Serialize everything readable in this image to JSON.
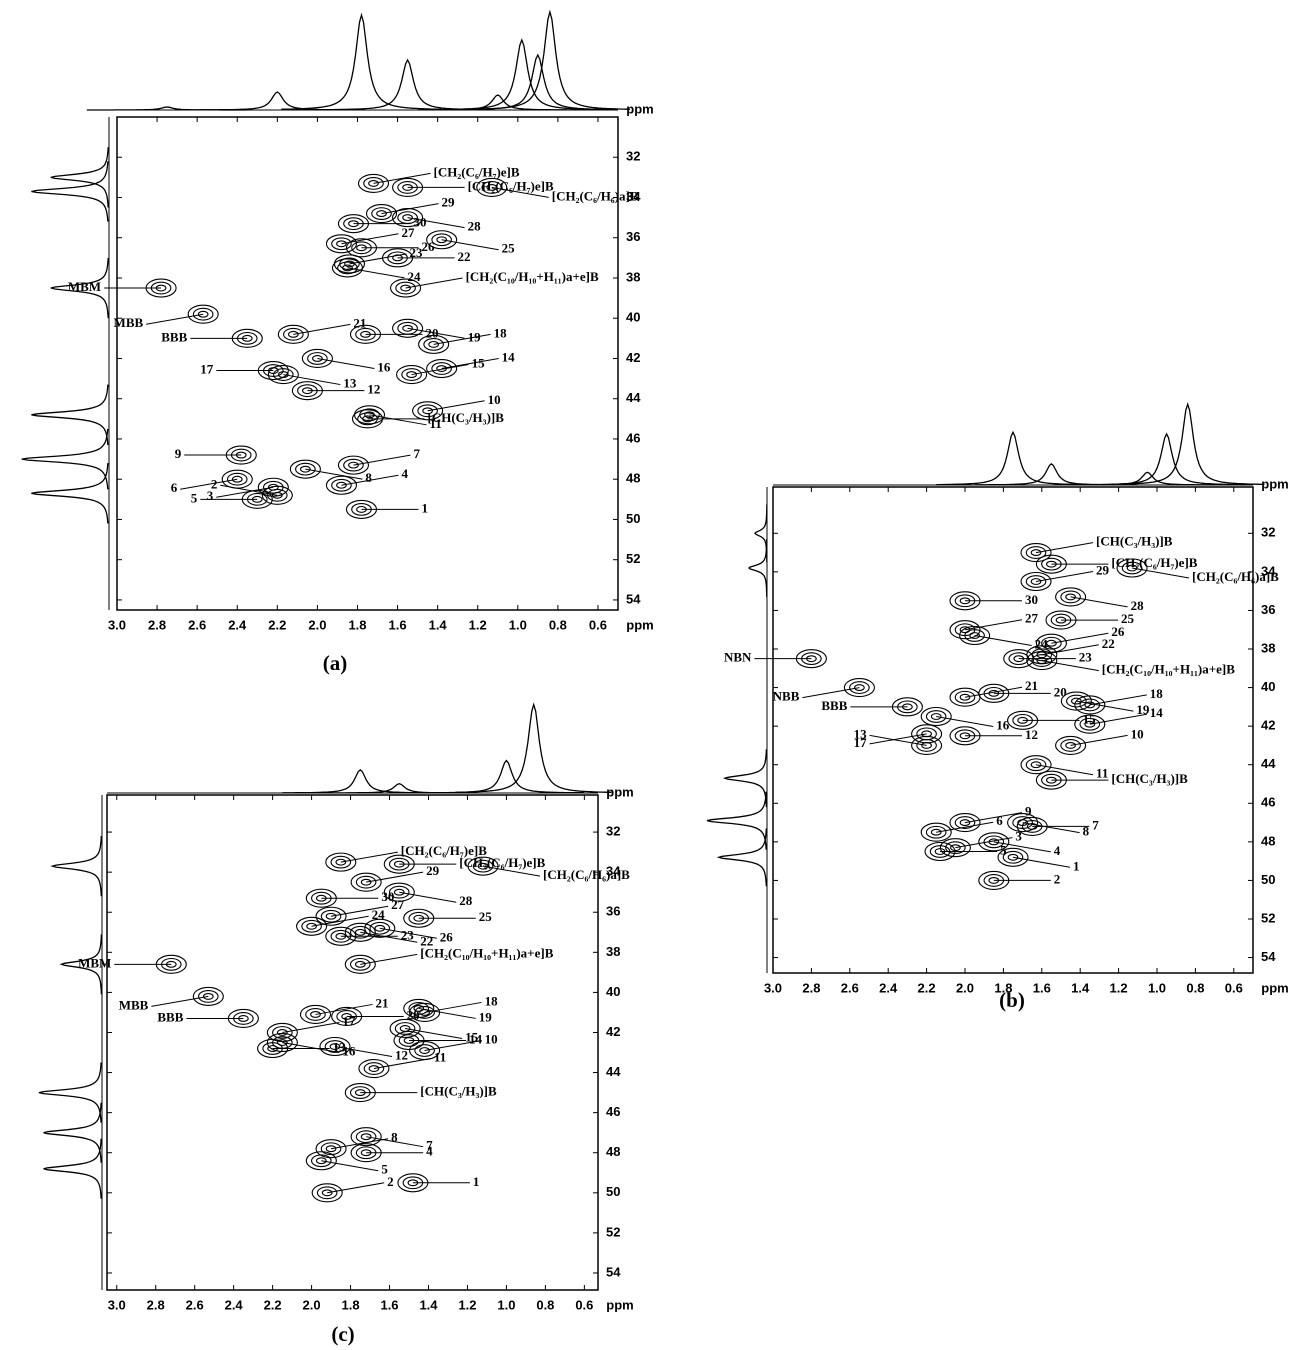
{
  "chart_data": [
    {
      "type": "contour",
      "caption": "(a)",
      "x_label": "ppm",
      "xlim": [
        3.0,
        0.5
      ],
      "ylim": [
        30,
        54.5
      ],
      "xticks": [
        {
          "value": 3,
          "label": "3.0"
        },
        2.8,
        2.6,
        2.4,
        2.2,
        {
          "value": 2,
          "label": "2.0"
        },
        1.8,
        1.6,
        1.4,
        1.2,
        {
          "value": 1,
          "label": "1.0"
        },
        0.8,
        0.6
      ],
      "yticks": [
        32,
        34,
        36,
        38,
        40,
        42,
        44,
        46,
        48,
        50,
        52,
        54
      ],
      "top_projection": [
        {
          "x": 2.75,
          "h": 0.03
        },
        {
          "x": 2.2,
          "h": 0.18
        },
        {
          "x": 1.78,
          "h": 0.95
        },
        {
          "x": 1.55,
          "h": 0.5
        },
        {
          "x": 1.1,
          "h": 0.15
        },
        {
          "x": 0.98,
          "h": 0.7
        },
        {
          "x": 0.9,
          "h": 0.55
        },
        {
          "x": 0.84,
          "h": 0.98
        }
      ],
      "left_projection": [
        {
          "y": 33,
          "h": 0.6
        },
        {
          "y": 33.7,
          "h": 0.8
        },
        {
          "y": 38.5,
          "h": 0.6
        },
        {
          "y": 44.8,
          "h": 0.8
        },
        {
          "y": 47,
          "h": 0.9
        },
        {
          "y": 48.7,
          "h": 0.8
        }
      ],
      "peaks": [
        {
          "label": "[CH₂(C₆/H₇)e]B",
          "x": 1.72,
          "y": 33.3
        },
        {
          "label": "[CH₂(C₆/H₇)e]B",
          "x": 1.55,
          "y": 33.5
        },
        {
          "label": "[CH₂(C₆/H₆)a]B",
          "x": 1.13,
          "y": 33.5
        },
        {
          "label": "29",
          "x": 1.68,
          "y": 34.8
        },
        {
          "label": "30",
          "x": 1.82,
          "y": 35.3
        },
        {
          "label": "28",
          "x": 1.55,
          "y": 35.0
        },
        {
          "label": "27",
          "x": 1.88,
          "y": 36.3
        },
        {
          "label": "26",
          "x": 1.78,
          "y": 36.5
        },
        {
          "label": "25",
          "x": 1.38,
          "y": 36.1
        },
        {
          "label": "23",
          "x": 1.84,
          "y": 37.3
        },
        {
          "label": "22",
          "x": 1.6,
          "y": 37.0
        },
        {
          "label": "24",
          "x": 1.85,
          "y": 37.5
        },
        {
          "label": "[CH₂(C₁₀/H₁₀+H₁₁)a+e]B",
          "x": 1.56,
          "y": 38.5
        },
        {
          "label": "MBM",
          "x": 2.78,
          "y": 38.5
        },
        {
          "label": "MBB",
          "x": 2.57,
          "y": 39.8
        },
        {
          "label": "21",
          "x": 2.12,
          "y": 40.8
        },
        {
          "label": "20",
          "x": 1.76,
          "y": 40.8
        },
        {
          "label": "19",
          "x": 1.55,
          "y": 40.5
        },
        {
          "label": "18",
          "x": 1.42,
          "y": 41.3
        },
        {
          "label": "BBB",
          "x": 2.35,
          "y": 41.0
        },
        {
          "label": "16",
          "x": 2.0,
          "y": 42.0
        },
        {
          "label": "14",
          "x": 1.38,
          "y": 42.5
        },
        {
          "label": "17",
          "x": 2.22,
          "y": 42.6
        },
        {
          "label": "13",
          "x": 2.17,
          "y": 42.8
        },
        {
          "label": "15",
          "x": 1.53,
          "y": 42.8
        },
        {
          "label": "12",
          "x": 2.05,
          "y": 43.6
        },
        {
          "label": "11",
          "x": 1.74,
          "y": 44.8
        },
        {
          "label": "10",
          "x": 1.45,
          "y": 44.6
        },
        {
          "label": "[CH(C₃/H₃)]B",
          "x": 1.75,
          "y": 45.0
        },
        {
          "label": "8",
          "x": 2.06,
          "y": 47.5
        },
        {
          "label": "7",
          "x": 1.82,
          "y": 47.3
        },
        {
          "label": "9",
          "x": 2.38,
          "y": 46.8
        },
        {
          "label": "6",
          "x": 2.4,
          "y": 48.0
        },
        {
          "label": "4",
          "x": 1.88,
          "y": 48.3
        },
        {
          "label": "5",
          "x": 2.3,
          "y": 49.0
        },
        {
          "label": "3",
          "x": 2.22,
          "y": 48.4
        },
        {
          "label": "2",
          "x": 2.2,
          "y": 48.8
        },
        {
          "label": "1",
          "x": 1.78,
          "y": 49.5
        }
      ]
    },
    {
      "type": "contour",
      "caption": "(b)",
      "x_label": "ppm",
      "xlim": [
        3.0,
        0.5
      ],
      "ylim": [
        29.6,
        54.8
      ],
      "xticks": [
        {
          "value": 3,
          "label": "3.0"
        },
        2.8,
        2.6,
        2.4,
        2.2,
        {
          "value": 2,
          "label": "2.0"
        },
        1.8,
        1.6,
        1.4,
        1.2,
        {
          "value": 1,
          "label": "1.0"
        },
        0.8,
        0.6
      ],
      "yticks": [
        32,
        34,
        36,
        38,
        40,
        42,
        44,
        46,
        48,
        50,
        52,
        54
      ],
      "top_projection": [
        {
          "x": 1.75,
          "h": 0.62
        },
        {
          "x": 1.55,
          "h": 0.25
        },
        {
          "x": 1.05,
          "h": 0.15
        },
        {
          "x": 0.95,
          "h": 0.6
        },
        {
          "x": 0.84,
          "h": 0.95
        }
      ],
      "left_projection": [
        {
          "y": 32,
          "h": 0.2
        },
        {
          "y": 33.8,
          "h": 0.3
        },
        {
          "y": 44.7,
          "h": 0.7
        },
        {
          "y": 46.9,
          "h": 1.0
        },
        {
          "y": 48.8,
          "h": 0.8
        }
      ],
      "peaks": [
        {
          "label": "[CH(C₃/H₃)]B",
          "x": 1.63,
          "y": 33.0
        },
        {
          "label": "[CH₂(C₆/H₇)e]B",
          "x": 1.55,
          "y": 33.6
        },
        {
          "label": "[CH₂(C₆/H₆)a]B",
          "x": 1.13,
          "y": 33.8
        },
        {
          "label": "29",
          "x": 1.63,
          "y": 34.5
        },
        {
          "label": "30",
          "x": 2.0,
          "y": 35.5
        },
        {
          "label": "28",
          "x": 1.45,
          "y": 35.3
        },
        {
          "label": "27",
          "x": 2.0,
          "y": 37.0
        },
        {
          "label": "25",
          "x": 1.5,
          "y": 36.5
        },
        {
          "label": "24",
          "x": 1.95,
          "y": 37.3
        },
        {
          "label": "26",
          "x": 1.55,
          "y": 37.7
        },
        {
          "label": "23",
          "x": 1.72,
          "y": 38.5
        },
        {
          "label": "[CH₂(C₁₀/H₁₀+H₁₁)a+e]B",
          "x": 1.6,
          "y": 38.6
        },
        {
          "label": "22",
          "x": 1.6,
          "y": 38.3
        },
        {
          "label": "NBN",
          "x": 2.8,
          "y": 38.5
        },
        {
          "label": "NBB",
          "x": 2.55,
          "y": 40.0
        },
        {
          "label": "21",
          "x": 2.0,
          "y": 40.5
        },
        {
          "label": "20",
          "x": 1.85,
          "y": 40.3
        },
        {
          "label": "19",
          "x": 1.42,
          "y": 40.7
        },
        {
          "label": "18",
          "x": 1.35,
          "y": 40.9
        },
        {
          "label": "BBB",
          "x": 2.3,
          "y": 41.0
        },
        {
          "label": "16",
          "x": 2.15,
          "y": 41.5
        },
        {
          "label": "14",
          "x": 1.35,
          "y": 41.9
        },
        {
          "label": "15",
          "x": 1.7,
          "y": 41.7
        },
        {
          "label": "17",
          "x": 2.2,
          "y": 42.4
        },
        {
          "label": "13",
          "x": 2.2,
          "y": 43.0
        },
        {
          "label": "12",
          "x": 2.0,
          "y": 42.5
        },
        {
          "label": "11",
          "x": 1.63,
          "y": 44.0
        },
        {
          "label": "10",
          "x": 1.45,
          "y": 43.0
        },
        {
          "label": "[CH(C₃/H₃)]B",
          "x": 1.55,
          "y": 44.8
        },
        {
          "label": "8",
          "x": 1.7,
          "y": 47.0
        },
        {
          "label": "9",
          "x": 2.0,
          "y": 47.0
        },
        {
          "label": "7",
          "x": 1.65,
          "y": 47.2
        },
        {
          "label": "4",
          "x": 1.85,
          "y": 48.0
        },
        {
          "label": "6",
          "x": 2.15,
          "y": 47.5
        },
        {
          "label": "5",
          "x": 2.13,
          "y": 48.5
        },
        {
          "label": "1",
          "x": 1.75,
          "y": 48.8
        },
        {
          "label": "3",
          "x": 2.05,
          "y": 48.3
        },
        {
          "label": "2",
          "x": 1.85,
          "y": 50.0
        }
      ]
    },
    {
      "type": "contour",
      "caption": "(c)",
      "x_label": "ppm",
      "xlim": [
        3.05,
        0.53
      ],
      "ylim": [
        30.15,
        54.85
      ],
      "xticks": [
        {
          "value": 3,
          "label": "3.0"
        },
        2.8,
        2.6,
        2.4,
        2.2,
        {
          "value": 2,
          "label": "2.0"
        },
        1.8,
        1.6,
        1.4,
        1.2,
        {
          "value": 1,
          "label": "1.0"
        },
        0.8,
        0.6
      ],
      "yticks": [
        32,
        34,
        36,
        38,
        40,
        42,
        44,
        46,
        48,
        50,
        52,
        54
      ],
      "top_projection": [
        {
          "x": 1.75,
          "h": 0.25
        },
        {
          "x": 1.55,
          "h": 0.1
        },
        {
          "x": 1.0,
          "h": 0.35
        },
        {
          "x": 0.86,
          "h": 0.95
        }
      ],
      "left_projection": [
        {
          "y": 33.7,
          "h": 0.55
        },
        {
          "y": 38.6,
          "h": 0.45
        },
        {
          "y": 45,
          "h": 0.7
        },
        {
          "y": 47,
          "h": 0.65
        },
        {
          "y": 48.8,
          "h": 0.65
        }
      ],
      "peaks": [
        {
          "label": "[CH₂(C₆/H₇)e]B",
          "x": 1.85,
          "y": 33.5
        },
        {
          "label": "[CH₂(C₆/H₇)e]B",
          "x": 1.55,
          "y": 33.6
        },
        {
          "label": "[CH₂(C₆/H₆)a]B",
          "x": 1.12,
          "y": 33.7
        },
        {
          "label": "29",
          "x": 1.72,
          "y": 34.5
        },
        {
          "label": "30",
          "x": 1.95,
          "y": 35.3
        },
        {
          "label": "28",
          "x": 1.55,
          "y": 35.0
        },
        {
          "label": "27",
          "x": 1.9,
          "y": 36.2
        },
        {
          "label": "25",
          "x": 1.45,
          "y": 36.3
        },
        {
          "label": "26",
          "x": 1.65,
          "y": 36.8
        },
        {
          "label": "24",
          "x": 2.0,
          "y": 36.7
        },
        {
          "label": "23",
          "x": 1.85,
          "y": 37.2
        },
        {
          "label": "22",
          "x": 1.75,
          "y": 37.0
        },
        {
          "label": "[CH₂(C₁₀/H₁₀+H₁₁)a+e]B",
          "x": 1.75,
          "y": 38.6
        },
        {
          "label": "MBM",
          "x": 2.72,
          "y": 38.6
        },
        {
          "label": "MBB",
          "x": 2.53,
          "y": 40.2
        },
        {
          "label": "21",
          "x": 1.98,
          "y": 41.1
        },
        {
          "label": "20",
          "x": 1.82,
          "y": 41.2
        },
        {
          "label": "19",
          "x": 1.45,
          "y": 40.8
        },
        {
          "label": "18",
          "x": 1.42,
          "y": 41.0
        },
        {
          "label": "BBB",
          "x": 2.35,
          "y": 41.3
        },
        {
          "label": "15",
          "x": 1.52,
          "y": 41.8
        },
        {
          "label": "17",
          "x": 2.15,
          "y": 42.0
        },
        {
          "label": "14",
          "x": 1.5,
          "y": 42.4
        },
        {
          "label": "16",
          "x": 2.15,
          "y": 42.5
        },
        {
          "label": "10",
          "x": 1.42,
          "y": 42.9
        },
        {
          "label": "13",
          "x": 2.2,
          "y": 42.8
        },
        {
          "label": "12",
          "x": 1.88,
          "y": 42.7
        },
        {
          "label": "11",
          "x": 1.68,
          "y": 43.8
        },
        {
          "label": "[CH(C₃/H₃)]B",
          "x": 1.75,
          "y": 45.0
        },
        {
          "label": "7",
          "x": 1.72,
          "y": 47.2
        },
        {
          "label": "8",
          "x": 1.9,
          "y": 47.8
        },
        {
          "label": "4",
          "x": 1.72,
          "y": 48.0
        },
        {
          "label": "5",
          "x": 1.95,
          "y": 48.4
        },
        {
          "label": "2",
          "x": 1.92,
          "y": 50.0
        },
        {
          "label": "1",
          "x": 1.48,
          "y": 49.5
        }
      ]
    }
  ]
}
